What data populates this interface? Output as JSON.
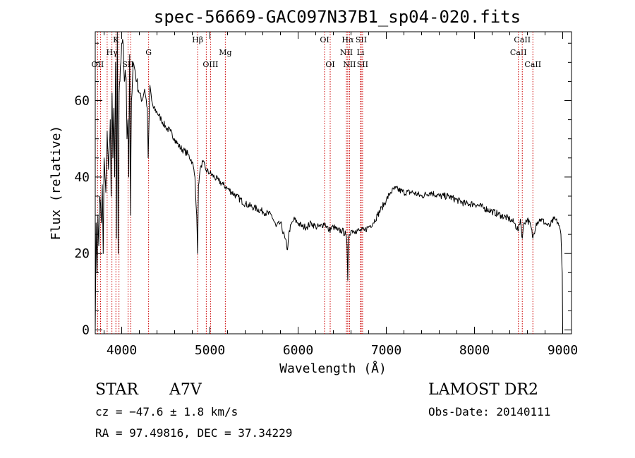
{
  "chart_data": {
    "type": "line",
    "title": "spec-56669-GAC097N37B1_sp04-020.fits",
    "xlabel": "Wavelength (Å)",
    "ylabel": "Flux (relative)",
    "xlim": [
      3700,
      9100
    ],
    "ylim": [
      -1,
      78
    ],
    "x_ticks": [
      4000,
      5000,
      6000,
      7000,
      8000,
      9000
    ],
    "y_ticks": [
      0,
      20,
      40,
      60
    ],
    "x_tick_labels": [
      "4000",
      "5000",
      "6000",
      "7000",
      "8000",
      "9000"
    ],
    "y_tick_labels": [
      "0",
      "20",
      "40",
      "60"
    ],
    "grid": false,
    "line_color": "#000000",
    "marker_color": "#cc0000",
    "series": [
      {
        "x": [
          3700,
          3710,
          3720,
          3730,
          3740,
          3750,
          3760,
          3770,
          3780,
          3790,
          3800,
          3810,
          3820,
          3835,
          3850,
          3860,
          3870,
          3880,
          3890,
          3900,
          3910,
          3920,
          3930,
          3940,
          3950,
          3960,
          3970,
          3980,
          3990,
          4000,
          4010,
          4020,
          4030,
          4040,
          4050,
          4060,
          4070,
          4080,
          4090,
          4100,
          4110,
          4130,
          4150,
          4170,
          4200,
          4230,
          4260,
          4290,
          4300,
          4310,
          4320,
          4340,
          4360,
          4400,
          4450,
          4500,
          4550,
          4600,
          4650,
          4700,
          4750,
          4800,
          4830,
          4850,
          4860,
          4865,
          4870,
          4880,
          4900,
          4920,
          4950,
          5000,
          5050,
          5100,
          5150,
          5200,
          5300,
          5400,
          5500,
          5600,
          5700,
          5750,
          5800,
          5850,
          5880,
          5890,
          5900,
          5950,
          6000,
          6050,
          6100,
          6150,
          6200,
          6250,
          6300,
          6350,
          6400,
          6450,
          6500,
          6540,
          6555,
          6563,
          6570,
          6580,
          6600,
          6650,
          6700,
          6750,
          6800,
          6850,
          6900,
          6950,
          7000,
          7050,
          7100,
          7200,
          7300,
          7400,
          7500,
          7600,
          7700,
          7800,
          7900,
          8000,
          8100,
          8200,
          8300,
          8400,
          8450,
          8498,
          8520,
          8542,
          8560,
          8600,
          8640,
          8662,
          8700,
          8750,
          8800,
          8850,
          8900,
          8950,
          8980,
          8995,
          9000
        ],
        "y": [
          0,
          28,
          15,
          30,
          22,
          35,
          33,
          28,
          38,
          20,
          45,
          40,
          36,
          52,
          42,
          48,
          55,
          35,
          62,
          45,
          58,
          40,
          70,
          24,
          78,
          20,
          62,
          65,
          70,
          75,
          76,
          72,
          65,
          68,
          66,
          50,
          55,
          40,
          72,
          30,
          60,
          70,
          68,
          65,
          62,
          60,
          63,
          58,
          45,
          55,
          64,
          60,
          58,
          57,
          55,
          53,
          52,
          50,
          48,
          47,
          46,
          44,
          40,
          30,
          20,
          28,
          38,
          40,
          43,
          44,
          42,
          41,
          40,
          39,
          38,
          37,
          35,
          33,
          32,
          31,
          30,
          27,
          28,
          24,
          21,
          24,
          26,
          29,
          28,
          27,
          27,
          28,
          27,
          27,
          28,
          26,
          27,
          26,
          26,
          25,
          22,
          13,
          24,
          25,
          26,
          26,
          26,
          26,
          27,
          28,
          30,
          32,
          34,
          36,
          37,
          36,
          36,
          35,
          36,
          35,
          35,
          34,
          33,
          33,
          32,
          31,
          30,
          29,
          28,
          26,
          29,
          24,
          28,
          29,
          27,
          24,
          28,
          29,
          28,
          27,
          29,
          28,
          25,
          15,
          0
        ]
      }
    ],
    "line_markers": [
      {
        "x": 3727,
        "label": "OII",
        "row": 3
      },
      {
        "x": 3760,
        "label": "",
        "row": 0
      },
      {
        "x": 3835,
        "label": "",
        "row": 0
      },
      {
        "x": 3889,
        "label": "Hγ",
        "row": 2
      },
      {
        "x": 3934,
        "label": "K",
        "row": 1
      },
      {
        "x": 3969,
        "label": "",
        "row": 0
      },
      {
        "x": 4072,
        "label": "SII",
        "row": 3
      },
      {
        "x": 4102,
        "label": "",
        "row": 0
      },
      {
        "x": 4305,
        "label": "G",
        "row": 2
      },
      {
        "x": 4861,
        "label": "Hβ",
        "row": 1
      },
      {
        "x": 4959,
        "label": "",
        "row": 0
      },
      {
        "x": 5007,
        "label": "OIII",
        "row": 3
      },
      {
        "x": 5175,
        "label": "Mg",
        "row": 2
      },
      {
        "x": 6300,
        "label": "OI",
        "row": 1
      },
      {
        "x": 6364,
        "label": "OI",
        "row": 3
      },
      {
        "x": 6548,
        "label": "NII",
        "row": 2
      },
      {
        "x": 6563,
        "label": "Hα",
        "row": 1
      },
      {
        "x": 6583,
        "label": "NII",
        "row": 3
      },
      {
        "x": 6716,
        "label": "SII",
        "row": 1
      },
      {
        "x": 6731,
        "label": "SII",
        "row": 3
      },
      {
        "x": 6708,
        "label": "Li",
        "row": 2
      },
      {
        "x": 8498,
        "label": "CaII",
        "row": 2
      },
      {
        "x": 8542,
        "label": "CaII",
        "row": 1
      },
      {
        "x": 8662,
        "label": "CaII",
        "row": 3
      }
    ]
  },
  "info": {
    "class_label": "STAR",
    "subclass": "A7V",
    "survey": "LAMOST DR2",
    "cz_text": "cz = −47.6 ± 1.8 km/s",
    "obs_date": "Obs-Date: 20140111",
    "radec_text": "RA =  97.49816, DEC =  37.34229"
  }
}
